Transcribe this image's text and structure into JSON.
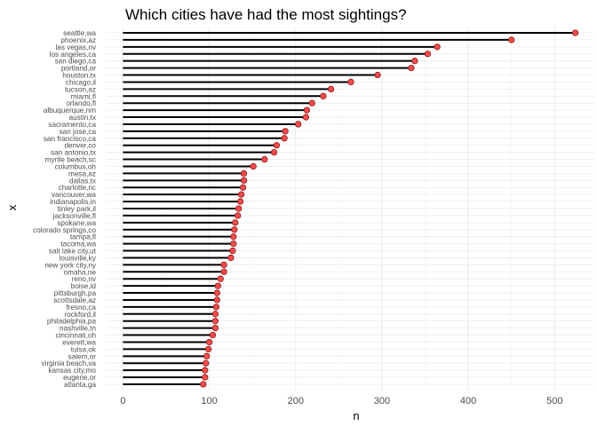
{
  "chart_data": {
    "type": "lollipop",
    "title": "Which cities have had the most sightings?",
    "xlabel": "n",
    "ylabel": "x",
    "xlim": [
      -20,
      545
    ],
    "xticks": [
      0,
      100,
      200,
      300,
      400,
      500
    ],
    "grid": true,
    "legend": "none",
    "colors": {
      "stem": "#000000",
      "point_fill": "#ff4d4d",
      "point_stroke": "#8b1a1a",
      "grid_major": "#ebebeb",
      "grid_minor": "#f5f5f5"
    },
    "categories": [
      "seattle,wa",
      "phoenix,az",
      "las vegas,nv",
      "los angeles,ca",
      "san diego,ca",
      "portland,or",
      "houston,tx",
      "chicago,il",
      "tucson,az",
      "miami,fl",
      "orlando,fl",
      "albuquerque,nm",
      "austin,tx",
      "sacramento,ca",
      "san jose,ca",
      "san francisco,ca",
      "denver,co",
      "san antonio,tx",
      "myrtle beach,sc",
      "columbus,oh",
      "mesa,az",
      "dallas,tx",
      "charlotte,nc",
      "vancouver,wa",
      "indianapolis,in",
      "tinley park,il",
      "jacksonville,fl",
      "spokane,wa",
      "colorado springs,co",
      "tampa,fl",
      "tacoma,wa",
      "salt lake city,ut",
      "louisville,ky",
      "new york city,ny",
      "omaha,ne",
      "reno,nv",
      "boise,id",
      "pittsburgh,pa",
      "scottsdale,az",
      "fresno,ca",
      "rockford,il",
      "philadelphia,pa",
      "nashville,tn",
      "cincinnati,oh",
      "everett,wa",
      "tulsa,ok",
      "salem,or",
      "virginia beach,va",
      "kansas city,mo",
      "eugene,or",
      "atlanta,ga"
    ],
    "values": [
      524,
      450,
      364,
      353,
      338,
      334,
      295,
      264,
      241,
      232,
      219,
      213,
      212,
      203,
      188,
      187,
      178,
      175,
      164,
      151,
      140,
      140,
      139,
      137,
      136,
      134,
      133,
      130,
      129,
      128,
      128,
      127,
      125,
      117,
      117,
      113,
      110,
      109,
      109,
      108,
      107,
      107,
      107,
      104,
      100,
      99,
      97,
      96,
      95,
      95,
      93
    ]
  }
}
